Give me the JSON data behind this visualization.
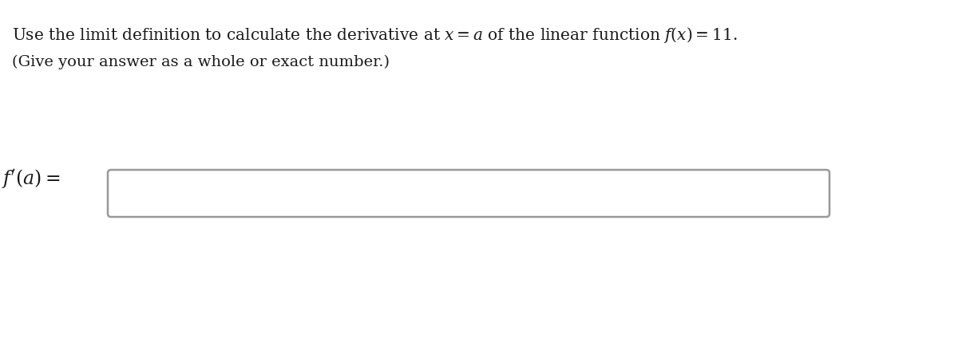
{
  "line1_parts": [
    {
      "text": "Use the limit definition to calculate the derivative at ",
      "style": "normal"
    },
    {
      "text": "x",
      "style": "italic"
    },
    {
      "text": " = ",
      "style": "normal"
    },
    {
      "text": "a",
      "style": "italic"
    },
    {
      "text": " of the linear function ",
      "style": "normal"
    },
    {
      "text": "f",
      "style": "italic"
    },
    {
      "text": "(",
      "style": "normal"
    },
    {
      "text": "x",
      "style": "italic"
    },
    {
      "text": ") = 11.",
      "style": "normal"
    }
  ],
  "line1": "Use the limit definition to calculate the derivative at $x = a$ of the linear function $f(x) = 11$.",
  "line2": "(Give your answer as a whole or exact number.)",
  "label": "$f'(a) =$",
  "bg_color": "#ffffff",
  "text_color": "#1a1a1a",
  "box_border_color": "#999999",
  "box_fill_color": "#ffffff",
  "line1_fontsize": 14.5,
  "line2_fontsize": 14,
  "label_fontsize": 17,
  "fig_width": 12.0,
  "fig_height": 4.54,
  "dpi": 100
}
